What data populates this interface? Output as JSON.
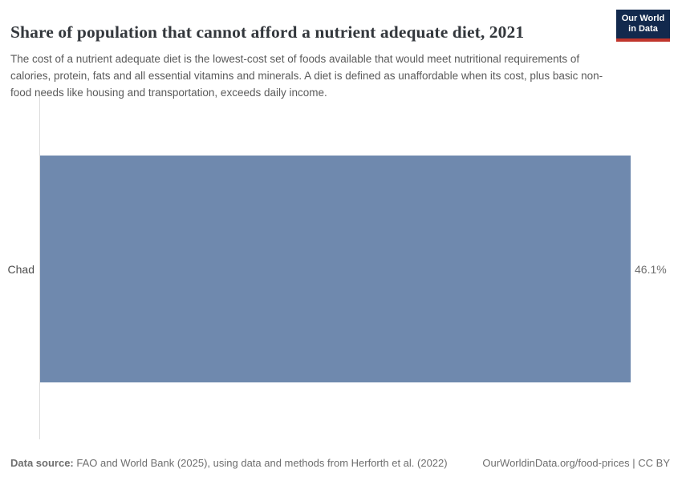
{
  "header": {
    "title": "Share of population that cannot afford a nutrient adequate diet, 2021",
    "subtitle": "The cost of a nutrient adequate diet is the lowest-cost set of foods available that would meet nutritional requirements of calories, protein, fats and all essential vitamins and minerals. A diet is defined as unaffordable when its cost, plus basic non-food needs like housing and transportation, exceeds daily income.",
    "logo": {
      "line1": "Our World",
      "line2": "in Data",
      "bg_color": "#12294d",
      "accent_color": "#c0352c"
    }
  },
  "chart": {
    "row_label": "Chad",
    "value_label": "46.1%",
    "bar_color": "#6f89ae",
    "axis_color": "#dcdcdc"
  },
  "chart_data": {
    "type": "bar",
    "orientation": "horizontal",
    "title": "Share of population that cannot afford a nutrient adequate diet, 2021",
    "categories": [
      "Chad"
    ],
    "values": [
      46.1
    ],
    "value_labels": [
      "46.1%"
    ],
    "xlabel": "",
    "ylabel": "",
    "xlim": [
      0,
      46.1
    ],
    "grid": false,
    "legend": false,
    "bar_color": "#6f89ae"
  },
  "footer": {
    "source_prefix": "Data source:",
    "source_text": " FAO and World Bank (2025), using data and methods from Herforth et al. (2022)",
    "right_text": "OurWorldinData.org/food-prices | CC BY"
  }
}
